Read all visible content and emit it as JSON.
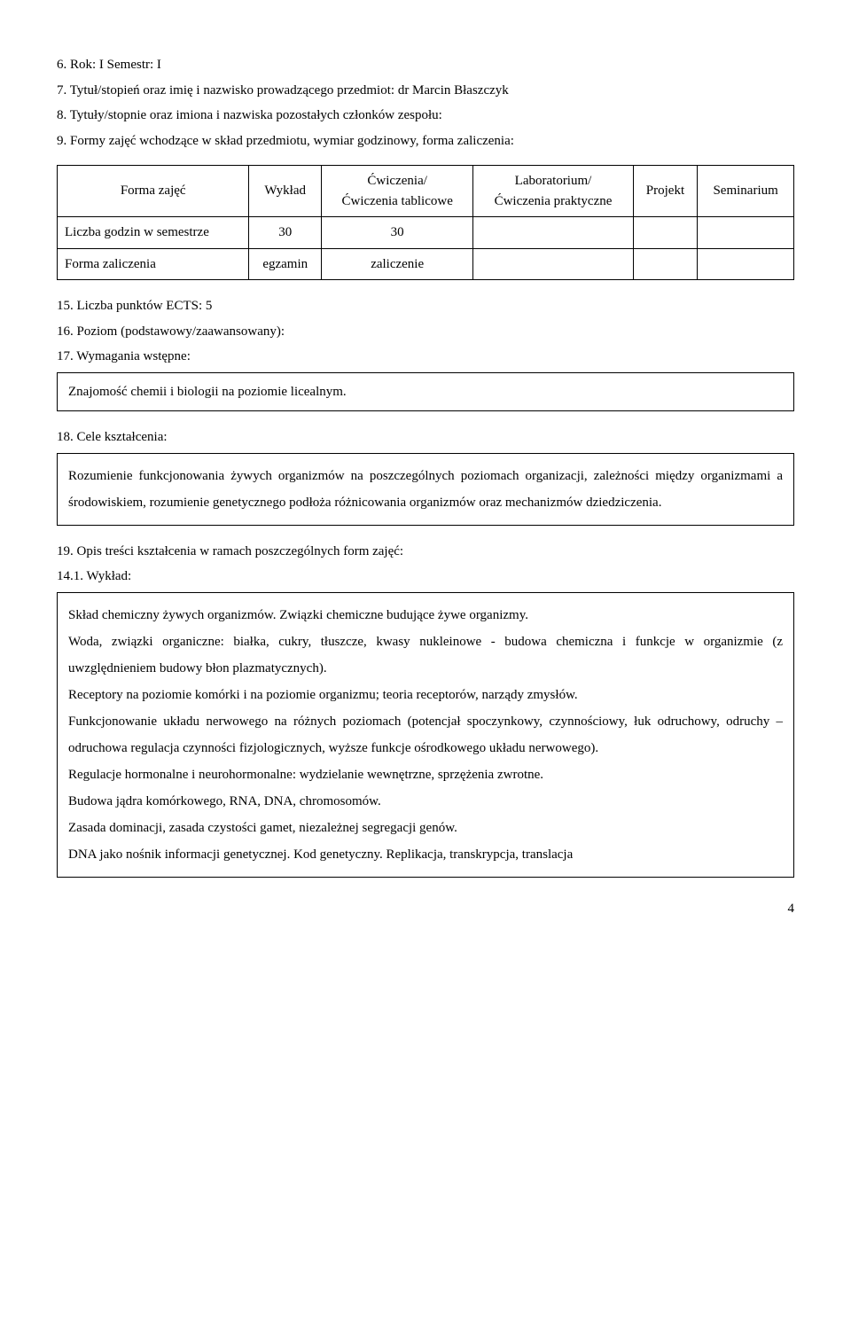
{
  "header": {
    "l6": "6. Rok: I     Semestr: I",
    "l7": "7. Tytuł/stopień oraz imię i nazwisko prowadzącego przedmiot:  dr Marcin Błaszczyk",
    "l8": "8. Tytuły/stopnie oraz imiona i nazwiska pozostałych członków zespołu:",
    "l9": "9. Formy zajęć wchodzące w skład przedmiotu, wymiar godzinowy, forma zaliczenia:"
  },
  "table": {
    "cols": [
      "Forma zajęć",
      "Wykład",
      "Ćwiczenia/\nĆwiczenia tablicowe",
      "Laboratorium/\nĆwiczenia praktyczne",
      "Projekt",
      "Seminarium"
    ],
    "rows": [
      {
        "label": "Liczba godzin w semestrze",
        "c": [
          "30",
          "30",
          "",
          "",
          ""
        ]
      },
      {
        "label": "Forma zaliczenia",
        "c": [
          "egzamin",
          "zaliczenie",
          "",
          "",
          ""
        ]
      }
    ]
  },
  "mid": {
    "l15": "15. Liczba punktów ECTS: 5",
    "l16": "16. Poziom (podstawowy/zaawansowany):",
    "l17": "17. Wymagania wstępne:",
    "box17": "Znajomość chemii i biologii na poziomie licealnym.",
    "l18": "18. Cele kształcenia:",
    "box18": "Rozumienie funkcjonowania żywych organizmów na poszczególnych poziomach organizacji, zależności między organizmami a środowiskiem, rozumienie genetycznego podłoża różnicowania organizmów oraz mechanizmów dziedziczenia.",
    "l19": "19. Opis treści kształcenia w ramach poszczególnych form zajęć:",
    "l141": "14.1. Wykład:"
  },
  "lecture_box": [
    "Skład chemiczny żywych organizmów. Związki chemiczne budujące żywe organizmy.",
    "Woda, związki organiczne: białka, cukry, tłuszcze, kwasy nukleinowe - budowa chemiczna i funkcje w organizmie (z uwzględnieniem budowy błon plazmatycznych).",
    "Receptory na poziomie komórki i na poziomie organizmu; teoria receptorów, narządy zmysłów.",
    "Funkcjonowanie układu nerwowego na różnych poziomach (potencjał spoczynkowy, czynnościowy, łuk odruchowy, odruchy – odruchowa regulacja czynności fizjologicznych, wyższe funkcje ośrodkowego układu nerwowego).",
    "Regulacje hormonalne i neurohormonalne: wydzielanie  wewnętrzne, sprzężenia zwrotne.",
    "Budowa jądra komórkowego, RNA, DNA, chromosomów.",
    "Zasada dominacji, zasada czystości gamet, niezależnej segregacji genów.",
    "DNA jako nośnik informacji genetycznej. Kod genetyczny. Replikacja, transkrypcja, translacja"
  ],
  "page_number": "4",
  "style": {
    "background_color": "#ffffff",
    "text_color": "#000000",
    "border_color": "#000000",
    "font_family": "Times New Roman",
    "base_fontsize_pt": 12
  }
}
